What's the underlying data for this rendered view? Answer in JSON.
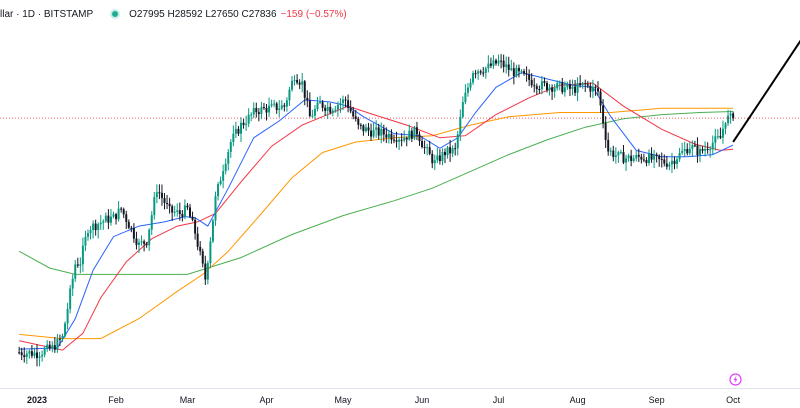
{
  "header": {
    "symbol": "llar · 1D · BITSTAMP",
    "ohlc": "O27995 H28592 L27650 C27836",
    "change": "−159 (−0.57%)"
  },
  "colors": {
    "up": "#089981",
    "down": "#131722",
    "sma_short": "#2962ff",
    "sma_mid": "#f23645",
    "sma_long": "#ff9800",
    "sma_200": "#4caf50",
    "last_price_line": "#f23645",
    "trendline": "#000000"
  },
  "icons": [
    "status-dot-icon",
    "tradingview-bolt-icon"
  ],
  "chart_data": {
    "type": "candlestick",
    "title": "",
    "ylim": [
      15000,
      32500
    ],
    "x_ticks": [
      "2023",
      "Feb",
      "Mar",
      "Apr",
      "May",
      "Jun",
      "Jul",
      "Aug",
      "Sep",
      "Oct"
    ],
    "x_tick_days": [
      0,
      31,
      59,
      90,
      120,
      151,
      181,
      212,
      243,
      273
    ],
    "anchors": [
      [
        -7,
        16700
      ],
      [
        0,
        16650
      ],
      [
        6,
        16900
      ],
      [
        10,
        17400
      ],
      [
        13,
        19500
      ],
      [
        15,
        20900
      ],
      [
        17,
        21000
      ],
      [
        20,
        22600
      ],
      [
        22,
        22700
      ],
      [
        27,
        23000
      ],
      [
        30,
        23100
      ],
      [
        33,
        23500
      ],
      [
        36,
        22800
      ],
      [
        40,
        21800
      ],
      [
        43,
        22000
      ],
      [
        47,
        24500
      ],
      [
        52,
        23400
      ],
      [
        56,
        23300
      ],
      [
        59,
        23500
      ],
      [
        62,
        22400
      ],
      [
        66,
        20200
      ],
      [
        70,
        24000
      ],
      [
        73,
        25500
      ],
      [
        76,
        26700
      ],
      [
        80,
        27500
      ],
      [
        86,
        28200
      ],
      [
        91,
        28300
      ],
      [
        97,
        28400
      ],
      [
        101,
        29900
      ],
      [
        104,
        29500
      ],
      [
        107,
        27900
      ],
      [
        111,
        28500
      ],
      [
        115,
        28300
      ],
      [
        121,
        28700
      ],
      [
        126,
        27400
      ],
      [
        131,
        27200
      ],
      [
        136,
        27100
      ],
      [
        143,
        26900
      ],
      [
        149,
        27200
      ],
      [
        152,
        26400
      ],
      [
        156,
        25700
      ],
      [
        160,
        26200
      ],
      [
        164,
        26300
      ],
      [
        167,
        28500
      ],
      [
        171,
        30100
      ],
      [
        176,
        30200
      ],
      [
        181,
        30500
      ],
      [
        186,
        30100
      ],
      [
        191,
        29800
      ],
      [
        197,
        29400
      ],
      [
        205,
        29300
      ],
      [
        210,
        29200
      ],
      [
        215,
        29400
      ],
      [
        220,
        29100
      ],
      [
        224,
        26300
      ],
      [
        228,
        26000
      ],
      [
        233,
        25900
      ],
      [
        237,
        26000
      ],
      [
        240,
        25900
      ],
      [
        244,
        25800
      ],
      [
        248,
        25700
      ],
      [
        252,
        26100
      ],
      [
        256,
        26500
      ],
      [
        260,
        26200
      ],
      [
        264,
        26600
      ],
      [
        268,
        26900
      ],
      [
        270,
        27800
      ],
      [
        273,
        27836
      ]
    ],
    "sma_short": [
      [
        -7,
        16850
      ],
      [
        8,
        16900
      ],
      [
        15,
        18300
      ],
      [
        22,
        20600
      ],
      [
        30,
        22200
      ],
      [
        40,
        22700
      ],
      [
        50,
        22900
      ],
      [
        58,
        23150
      ],
      [
        62,
        23100
      ],
      [
        67,
        22700
      ],
      [
        75,
        24500
      ],
      [
        85,
        26900
      ],
      [
        95,
        27700
      ],
      [
        105,
        28700
      ],
      [
        115,
        28600
      ],
      [
        122,
        28400
      ],
      [
        128,
        27900
      ],
      [
        140,
        27100
      ],
      [
        150,
        27000
      ],
      [
        158,
        26400
      ],
      [
        165,
        26900
      ],
      [
        172,
        28100
      ],
      [
        180,
        29300
      ],
      [
        190,
        30000
      ],
      [
        200,
        29700
      ],
      [
        210,
        29400
      ],
      [
        218,
        29300
      ],
      [
        225,
        27900
      ],
      [
        235,
        26300
      ],
      [
        245,
        26000
      ],
      [
        255,
        26000
      ],
      [
        265,
        26100
      ],
      [
        273,
        26550
      ]
    ],
    "sma_mid": [
      [
        -7,
        17250
      ],
      [
        10,
        16800
      ],
      [
        18,
        17600
      ],
      [
        25,
        19300
      ],
      [
        35,
        21000
      ],
      [
        45,
        22100
      ],
      [
        55,
        22700
      ],
      [
        63,
        22900
      ],
      [
        70,
        23300
      ],
      [
        80,
        24800
      ],
      [
        92,
        26500
      ],
      [
        104,
        27500
      ],
      [
        114,
        28000
      ],
      [
        122,
        28400
      ],
      [
        132,
        28000
      ],
      [
        145,
        27500
      ],
      [
        158,
        26900
      ],
      [
        168,
        27000
      ],
      [
        180,
        28000
      ],
      [
        193,
        28800
      ],
      [
        205,
        29400
      ],
      [
        218,
        29500
      ],
      [
        230,
        28400
      ],
      [
        245,
        27300
      ],
      [
        258,
        26600
      ],
      [
        268,
        26300
      ],
      [
        273,
        26350
      ]
    ],
    "sma_long": [
      [
        -7,
        17550
      ],
      [
        10,
        17350
      ],
      [
        25,
        17350
      ],
      [
        40,
        18300
      ],
      [
        55,
        19600
      ],
      [
        65,
        20400
      ],
      [
        75,
        21500
      ],
      [
        88,
        23300
      ],
      [
        100,
        25000
      ],
      [
        112,
        26200
      ],
      [
        125,
        26700
      ],
      [
        140,
        26900
      ],
      [
        155,
        27000
      ],
      [
        170,
        27500
      ],
      [
        185,
        27900
      ],
      [
        205,
        28100
      ],
      [
        225,
        28100
      ],
      [
        245,
        28300
      ],
      [
        260,
        28300
      ],
      [
        273,
        28300
      ]
    ],
    "sma_200": [
      [
        -7,
        21500
      ],
      [
        5,
        20700
      ],
      [
        15,
        20400
      ],
      [
        35,
        20400
      ],
      [
        59,
        20400
      ],
      [
        80,
        21200
      ],
      [
        100,
        22300
      ],
      [
        120,
        23200
      ],
      [
        140,
        23900
      ],
      [
        155,
        24500
      ],
      [
        170,
        25300
      ],
      [
        185,
        26100
      ],
      [
        200,
        26800
      ],
      [
        215,
        27400
      ],
      [
        230,
        27800
      ],
      [
        245,
        28000
      ],
      [
        260,
        28100
      ],
      [
        273,
        28150
      ]
    ],
    "last_price": 27836,
    "trendline": [
      [
        273,
        26700
      ],
      [
        301,
        31800
      ]
    ]
  }
}
